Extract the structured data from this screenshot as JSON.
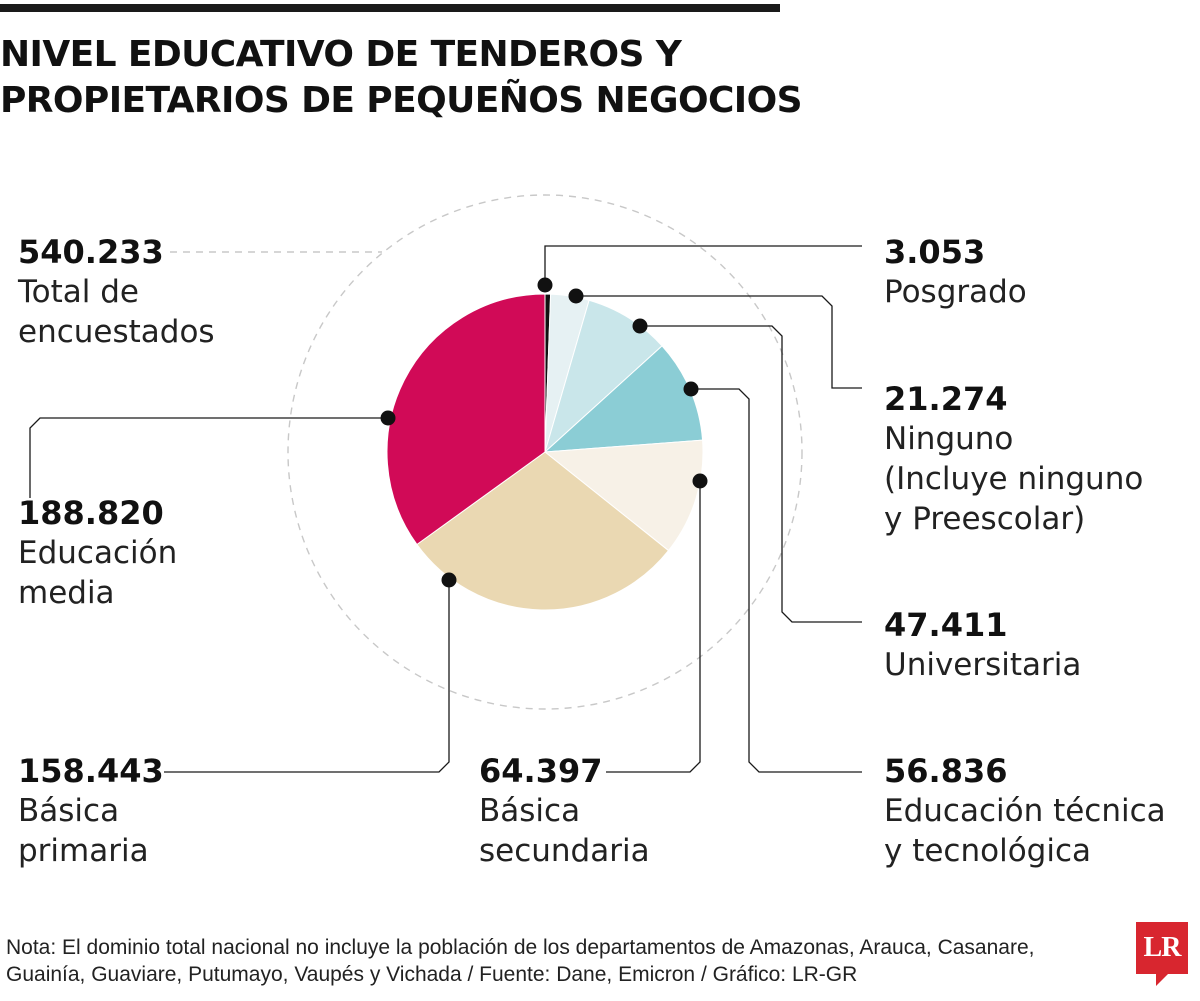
{
  "title_lines": [
    "NIVEL EDUCATIVO DE TENDEROS Y",
    "PROPIETARIOS DE PEQUEÑOS NEGOCIOS"
  ],
  "total": {
    "value": "540.233",
    "label_lines": [
      "Total de",
      "encuestados"
    ]
  },
  "chart_data": {
    "type": "pie",
    "title": "NIVEL EDUCATIVO DE TENDEROS Y PROPIETARIOS DE PEQUEÑOS NEGOCIOS",
    "total": 540233,
    "start_angle_deg": 0,
    "direction": "clockwise",
    "slices": [
      {
        "name": "Posgrado",
        "value": 3053,
        "label": "3.053",
        "color": "#111111"
      },
      {
        "name": "Ninguno (Incluye ninguno y Preescolar)",
        "value": 21274,
        "label": "21.274",
        "color": "#e6f1f3"
      },
      {
        "name": "Universitaria",
        "value": 47411,
        "label": "47.411",
        "color": "#c9e6ea"
      },
      {
        "name": "Educación técnica y tecnológica",
        "value": 56836,
        "label": "56.836",
        "color": "#8bcdd5"
      },
      {
        "name": "Básica secundaria",
        "value": 64397,
        "label": "64.397",
        "color": "#f7f1e7"
      },
      {
        "name": "Básica primaria",
        "value": 158443,
        "label": "158.443",
        "color": "#ead8b2"
      },
      {
        "name": "Educación media",
        "value": 188820,
        "label": "188.820",
        "color": "#d10a57"
      }
    ]
  },
  "labels": {
    "posgrado": {
      "value": "3.053",
      "lines": [
        "Posgrado"
      ]
    },
    "ninguno": {
      "value": "21.274",
      "lines": [
        "Ninguno",
        "(Incluye ninguno",
        "y Preescolar)"
      ]
    },
    "universitaria": {
      "value": "47.411",
      "lines": [
        "Universitaria"
      ]
    },
    "tecnica": {
      "value": "56.836",
      "lines": [
        "Educación técnica",
        "y tecnológica"
      ]
    },
    "secundaria": {
      "value": "64.397",
      "lines": [
        "Básica",
        "secundaria"
      ]
    },
    "primaria": {
      "value": "158.443",
      "lines": [
        "Básica",
        "primaria"
      ]
    },
    "media": {
      "value": "188.820",
      "lines": [
        "Educación",
        "media"
      ]
    }
  },
  "note": "Nota: El dominio total nacional no incluye la población de los departamentos de Amazonas, Arauca, Casanare, Guainía, Guaviare, Putumayo, Vaupés y Vichada / Fuente: Dane, Emicron / Gráfico: LR-GR",
  "logo_text": "LR",
  "colors": {
    "accent": "#d10a57",
    "brand": "#d8262f"
  }
}
